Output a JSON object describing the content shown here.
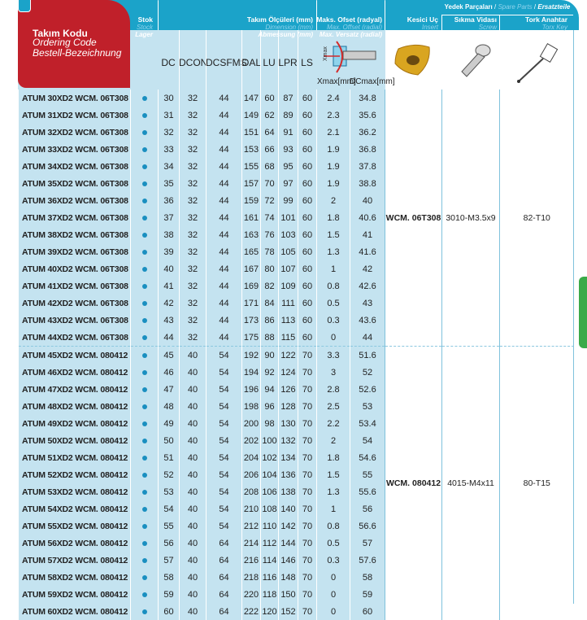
{
  "header": {
    "code": {
      "tr": "Takım Kodu",
      "en": "Ordering Code",
      "de": "Bestell-Bezeichnung"
    },
    "stock": {
      "tr": "Stok",
      "en": "Stock",
      "de": "Lager"
    },
    "dimension": {
      "tr": "Takım Ölçüleri (mm)",
      "en": "Dimension (mm)",
      "de": "Abmessung (mm)"
    },
    "offset": {
      "tr": "Maks. Ofset (radyal)",
      "en": "Max. Offset (radial)",
      "de": "Max. Versatz (radial)"
    },
    "insert": {
      "tr": "Kesici Uç",
      "en": "Insert",
      "de": "Wendeschneidplatte"
    },
    "spare": {
      "tr": "Yedek Parçaları",
      "en": "Spare Parts",
      "de": "Ersatzteile"
    },
    "screw": {
      "tr": "Sıkma Vidası",
      "en": "Screw",
      "de": "Schraube"
    },
    "key": {
      "tr": "Tork Anahtar",
      "en": "Torx Key",
      "de": "Torx-Schlüssel"
    },
    "columns": [
      "DC",
      "DCON",
      "DCSFMS",
      "OAL",
      "LU",
      "LPR",
      "LS"
    ],
    "xmax": "Xmax[mm]",
    "dcmax": "DCmax[mm]"
  },
  "colors": {
    "header_blue": "#1ba3c9",
    "row_blue": "#c4e3f0",
    "red": "#c0202a",
    "stock_dot": "#1a8fc0",
    "side_tab": "#3aaa48"
  },
  "groups": [
    {
      "insert": "WCM. 06T308",
      "screw": "3010-M3.5x9",
      "key": "82-T10",
      "rows": [
        [
          "ATUM 30XD2 WCM. 06T308",
          "30",
          "32",
          "44",
          "147",
          "60",
          "87",
          "60",
          "2.4",
          "34.8"
        ],
        [
          "ATUM 31XD2 WCM. 06T308",
          "31",
          "32",
          "44",
          "149",
          "62",
          "89",
          "60",
          "2.3",
          "35.6"
        ],
        [
          "ATUM 32XD2 WCM. 06T308",
          "32",
          "32",
          "44",
          "151",
          "64",
          "91",
          "60",
          "2.1",
          "36.2"
        ],
        [
          "ATUM 33XD2 WCM. 06T308",
          "33",
          "32",
          "44",
          "153",
          "66",
          "93",
          "60",
          "1.9",
          "36.8"
        ],
        [
          "ATUM 34XD2 WCM. 06T308",
          "34",
          "32",
          "44",
          "155",
          "68",
          "95",
          "60",
          "1.9",
          "37.8"
        ],
        [
          "ATUM 35XD2 WCM. 06T308",
          "35",
          "32",
          "44",
          "157",
          "70",
          "97",
          "60",
          "1.9",
          "38.8"
        ],
        [
          "ATUM 36XD2 WCM. 06T308",
          "36",
          "32",
          "44",
          "159",
          "72",
          "99",
          "60",
          "2",
          "40"
        ],
        [
          "ATUM 37XD2 WCM. 06T308",
          "37",
          "32",
          "44",
          "161",
          "74",
          "101",
          "60",
          "1.8",
          "40.6"
        ],
        [
          "ATUM 38XD2 WCM. 06T308",
          "38",
          "32",
          "44",
          "163",
          "76",
          "103",
          "60",
          "1.5",
          "41"
        ],
        [
          "ATUM 39XD2 WCM. 06T308",
          "39",
          "32",
          "44",
          "165",
          "78",
          "105",
          "60",
          "1.3",
          "41.6"
        ],
        [
          "ATUM 40XD2 WCM. 06T308",
          "40",
          "32",
          "44",
          "167",
          "80",
          "107",
          "60",
          "1",
          "42"
        ],
        [
          "ATUM 41XD2 WCM. 06T308",
          "41",
          "32",
          "44",
          "169",
          "82",
          "109",
          "60",
          "0.8",
          "42.6"
        ],
        [
          "ATUM 42XD2 WCM. 06T308",
          "42",
          "32",
          "44",
          "171",
          "84",
          "111",
          "60",
          "0.5",
          "43"
        ],
        [
          "ATUM 43XD2 WCM. 06T308",
          "43",
          "32",
          "44",
          "173",
          "86",
          "113",
          "60",
          "0.3",
          "43.6"
        ],
        [
          "ATUM 44XD2 WCM. 06T308",
          "44",
          "32",
          "44",
          "175",
          "88",
          "115",
          "60",
          "0",
          "44"
        ]
      ]
    },
    {
      "insert": "WCM. 080412",
      "screw": "4015-M4x11",
      "key": "80-T15",
      "rows": [
        [
          "ATUM 45XD2 WCM. 080412",
          "45",
          "40",
          "54",
          "192",
          "90",
          "122",
          "70",
          "3.3",
          "51.6"
        ],
        [
          "ATUM 46XD2 WCM. 080412",
          "46",
          "40",
          "54",
          "194",
          "92",
          "124",
          "70",
          "3",
          "52"
        ],
        [
          "ATUM 47XD2 WCM. 080412",
          "47",
          "40",
          "54",
          "196",
          "94",
          "126",
          "70",
          "2.8",
          "52.6"
        ],
        [
          "ATUM 48XD2 WCM. 080412",
          "48",
          "40",
          "54",
          "198",
          "96",
          "128",
          "70",
          "2.5",
          "53"
        ],
        [
          "ATUM 49XD2 WCM. 080412",
          "49",
          "40",
          "54",
          "200",
          "98",
          "130",
          "70",
          "2.2",
          "53.4"
        ],
        [
          "ATUM 50XD2 WCM. 080412",
          "50",
          "40",
          "54",
          "202",
          "100",
          "132",
          "70",
          "2",
          "54"
        ],
        [
          "ATUM 51XD2 WCM. 080412",
          "51",
          "40",
          "54",
          "204",
          "102",
          "134",
          "70",
          "1.8",
          "54.6"
        ],
        [
          "ATUM 52XD2 WCM. 080412",
          "52",
          "40",
          "54",
          "206",
          "104",
          "136",
          "70",
          "1.5",
          "55"
        ],
        [
          "ATUM 53XD2 WCM. 080412",
          "53",
          "40",
          "54",
          "208",
          "106",
          "138",
          "70",
          "1.3",
          "55.6"
        ],
        [
          "ATUM 54XD2 WCM. 080412",
          "54",
          "40",
          "54",
          "210",
          "108",
          "140",
          "70",
          "1",
          "56"
        ],
        [
          "ATUM 55XD2 WCM. 080412",
          "55",
          "40",
          "54",
          "212",
          "110",
          "142",
          "70",
          "0.8",
          "56.6"
        ],
        [
          "ATUM 56XD2 WCM. 080412",
          "56",
          "40",
          "64",
          "214",
          "112",
          "144",
          "70",
          "0.5",
          "57"
        ],
        [
          "ATUM 57XD2 WCM. 080412",
          "57",
          "40",
          "64",
          "216",
          "114",
          "146",
          "70",
          "0.3",
          "57.6"
        ],
        [
          "ATUM 58XD2 WCM. 080412",
          "58",
          "40",
          "64",
          "218",
          "116",
          "148",
          "70",
          "0",
          "58"
        ],
        [
          "ATUM 59XD2 WCM. 080412",
          "59",
          "40",
          "64",
          "220",
          "118",
          "150",
          "70",
          "0",
          "59"
        ],
        [
          "ATUM 60XD2 WCM. 080412",
          "60",
          "40",
          "64",
          "222",
          "120",
          "152",
          "70",
          "0",
          "60"
        ]
      ]
    }
  ]
}
